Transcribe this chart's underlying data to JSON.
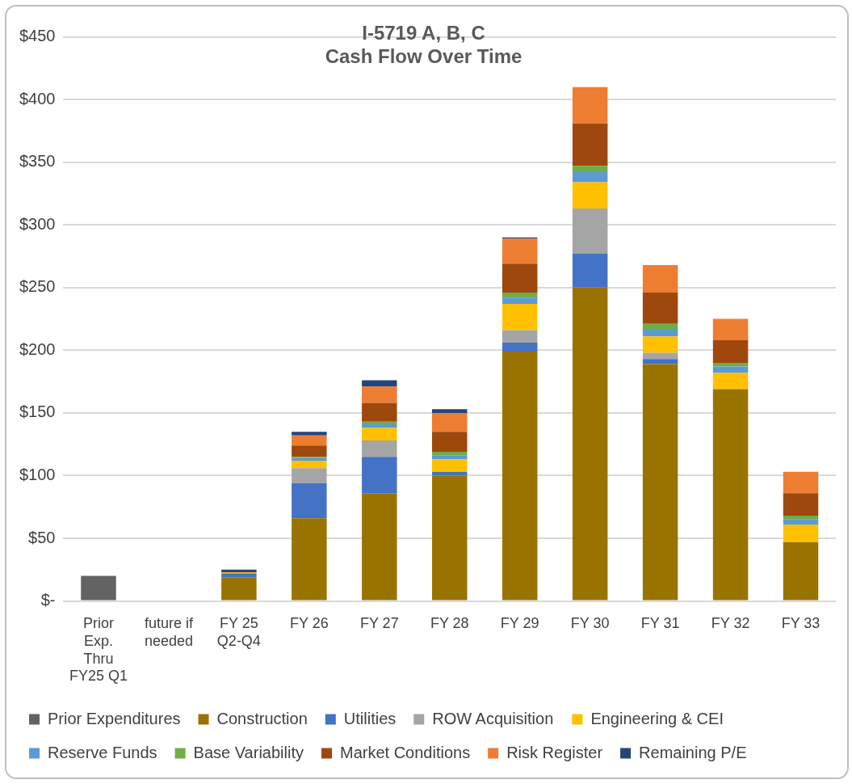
{
  "chart_data": {
    "type": "bar",
    "title": "I-5719 A, B, C",
    "subtitle": "Cash Flow Over Time",
    "stacked": true,
    "grid": "y",
    "legend": "bottom",
    "categories": [
      "Prior Exp. Thru FY25 Q1",
      "future if needed",
      "FY 25 Q2-Q4",
      "FY 26",
      "FY 27",
      "FY 28",
      "FY 29",
      "FY 30",
      "FY 31",
      "FY 32",
      "FY 33"
    ],
    "ylim": [
      0,
      450
    ],
    "yticks": [
      {
        "value": 0,
        "label": "$-"
      },
      {
        "value": 50,
        "label": "$50"
      },
      {
        "value": 100,
        "label": "$100"
      },
      {
        "value": 150,
        "label": "$150"
      },
      {
        "value": 200,
        "label": "$200"
      },
      {
        "value": 250,
        "label": "$250"
      },
      {
        "value": 300,
        "label": "$300"
      },
      {
        "value": 350,
        "label": "$350"
      },
      {
        "value": 400,
        "label": "$400"
      },
      {
        "value": 450,
        "label": "$450"
      }
    ],
    "series": [
      {
        "name": "Prior Expenditures",
        "color": "#636363",
        "values": [
          20,
          null,
          null,
          null,
          null,
          null,
          null,
          null,
          null,
          null,
          null
        ]
      },
      {
        "name": "Construction",
        "color": "#997300",
        "values": [
          null,
          null,
          19,
          66,
          86,
          100,
          199,
          250,
          189,
          169,
          47
        ]
      },
      {
        "name": "Utilities",
        "color": "#4472c4",
        "values": [
          null,
          null,
          3,
          28,
          29,
          3,
          7,
          27,
          4,
          null,
          null
        ]
      },
      {
        "name": "ROW Acquisition",
        "color": "#a5a5a5",
        "values": [
          null,
          null,
          null,
          12,
          13,
          null,
          10,
          36,
          5,
          null,
          null
        ]
      },
      {
        "name": "Engineering & CEI",
        "color": "#ffc000",
        "values": [
          null,
          null,
          1,
          6,
          10,
          10,
          21,
          21,
          13,
          13,
          14
        ]
      },
      {
        "name": "Reserve Funds",
        "color": "#5b9bd5",
        "values": [
          null,
          null,
          null,
          2,
          3,
          3,
          5,
          8,
          6,
          5,
          4
        ]
      },
      {
        "name": "Base Variability",
        "color": "#70ad47",
        "values": [
          null,
          null,
          null,
          1,
          2,
          3,
          4,
          5,
          4,
          3,
          3
        ]
      },
      {
        "name": "Market Conditions",
        "color": "#9e480e",
        "values": [
          null,
          null,
          null,
          9,
          15,
          16,
          23,
          34,
          25,
          18,
          18
        ]
      },
      {
        "name": "Risk Register",
        "color": "#ed7d31",
        "values": [
          null,
          null,
          null,
          8,
          13,
          15,
          20,
          29,
          22,
          17,
          17
        ]
      },
      {
        "name": "Remaining P/E",
        "color": "#264478",
        "values": [
          null,
          null,
          2,
          3,
          5,
          3,
          1,
          null,
          null,
          null,
          null
        ]
      }
    ]
  }
}
